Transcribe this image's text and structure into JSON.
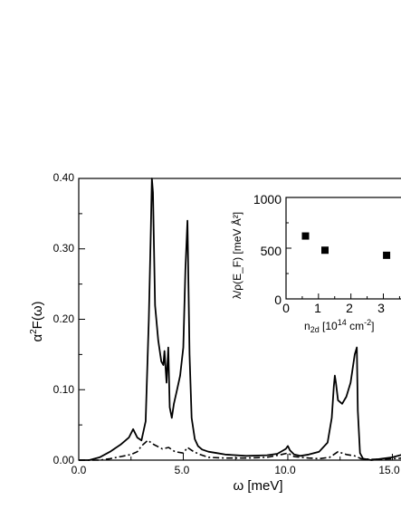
{
  "chart_data": [
    {
      "type": "line",
      "xlabel": "ω [meV]",
      "ylabel_parts": {
        "base": "α",
        "sup": "2",
        "tail": "F(ω)"
      },
      "xlim": [
        0,
        15.5
      ],
      "ylim": [
        0,
        0.4
      ],
      "x_ticks": [
        0,
        5,
        10,
        15
      ],
      "x_tick_labels": [
        "0.0",
        "5.0",
        "10.0",
        "15.0"
      ],
      "y_ticks": [
        0,
        0.1,
        0.2,
        0.3,
        0.4
      ],
      "y_tick_labels": [
        "0.00",
        "0.10",
        "0.20",
        "0.30",
        "0.40"
      ],
      "grid": false,
      "series": [
        {
          "style": "solid",
          "x": [
            0,
            0.5,
            1.0,
            1.5,
            2.0,
            2.4,
            2.6,
            2.8,
            3.0,
            3.2,
            3.35,
            3.45,
            3.5,
            3.55,
            3.65,
            3.8,
            3.95,
            4.05,
            4.1,
            4.2,
            4.28,
            4.35,
            4.45,
            4.55,
            4.7,
            4.85,
            5.0,
            5.1,
            5.2,
            5.3,
            5.4,
            5.55,
            5.7,
            5.9,
            6.2,
            6.6,
            7.0,
            8.0,
            9.0,
            9.5,
            9.9,
            10.0,
            10.1,
            10.3,
            10.6,
            11.0,
            11.5,
            11.9,
            12.1,
            12.2,
            12.25,
            12.3,
            12.4,
            12.6,
            12.8,
            13.0,
            13.1,
            13.2,
            13.3,
            13.35,
            13.45,
            13.6,
            14.0,
            14.5,
            15.0,
            15.5
          ],
          "y": [
            0,
            0.0,
            0.004,
            0.012,
            0.022,
            0.032,
            0.044,
            0.032,
            0.028,
            0.055,
            0.2,
            0.33,
            0.4,
            0.38,
            0.22,
            0.17,
            0.14,
            0.135,
            0.155,
            0.11,
            0.16,
            0.075,
            0.06,
            0.08,
            0.1,
            0.12,
            0.16,
            0.27,
            0.34,
            0.15,
            0.06,
            0.03,
            0.02,
            0.015,
            0.012,
            0.01,
            0.008,
            0.006,
            0.007,
            0.009,
            0.016,
            0.02,
            0.014,
            0.008,
            0.006,
            0.008,
            0.012,
            0.025,
            0.06,
            0.105,
            0.12,
            0.11,
            0.085,
            0.08,
            0.09,
            0.11,
            0.13,
            0.15,
            0.16,
            0.07,
            0.01,
            0.002,
            0.0,
            0.002,
            0.004,
            0.008
          ]
        },
        {
          "style": "dash-dot",
          "x": [
            0,
            1.0,
            1.5,
            2.0,
            2.5,
            2.8,
            3.0,
            3.3,
            3.6,
            4.0,
            4.3,
            4.6,
            5.0,
            5.2,
            5.5,
            5.8,
            6.2,
            7.0,
            8.0,
            9.0,
            9.7,
            10.0,
            10.3,
            11.0,
            11.5,
            12.0,
            12.4,
            12.8,
            13.2,
            13.5,
            14.0,
            15.0,
            15.5
          ],
          "y": [
            0,
            0,
            0.002,
            0.005,
            0.008,
            0.012,
            0.02,
            0.028,
            0.022,
            0.016,
            0.018,
            0.012,
            0.01,
            0.018,
            0.012,
            0.008,
            0.004,
            0.003,
            0.003,
            0.004,
            0.008,
            0.01,
            0.005,
            0.003,
            0.002,
            0.004,
            0.012,
            0.008,
            0.006,
            0.002,
            0.001,
            0.002,
            0.003
          ]
        }
      ]
    },
    {
      "type": "scatter",
      "xlabel_parts": {
        "pre": "n",
        "sub": "2d",
        "mid": " [10",
        "sup": "14",
        "post": " cm",
        "sup2": "-2",
        "end": "]"
      },
      "ylabel": "λ/ρ(E_F) [meV Å²]",
      "xlim": [
        0,
        3.6
      ],
      "ylim": [
        0,
        1000
      ],
      "x_ticks": [
        0,
        1,
        2,
        3
      ],
      "x_tick_labels": [
        "0",
        "1",
        "2",
        "3"
      ],
      "y_ticks": [
        0,
        500,
        1000
      ],
      "y_tick_labels": [
        "0",
        "500",
        "1000"
      ],
      "points": [
        {
          "x": 0.6,
          "y": 620
        },
        {
          "x": 1.2,
          "y": 480
        },
        {
          "x": 3.1,
          "y": 430
        }
      ]
    }
  ]
}
